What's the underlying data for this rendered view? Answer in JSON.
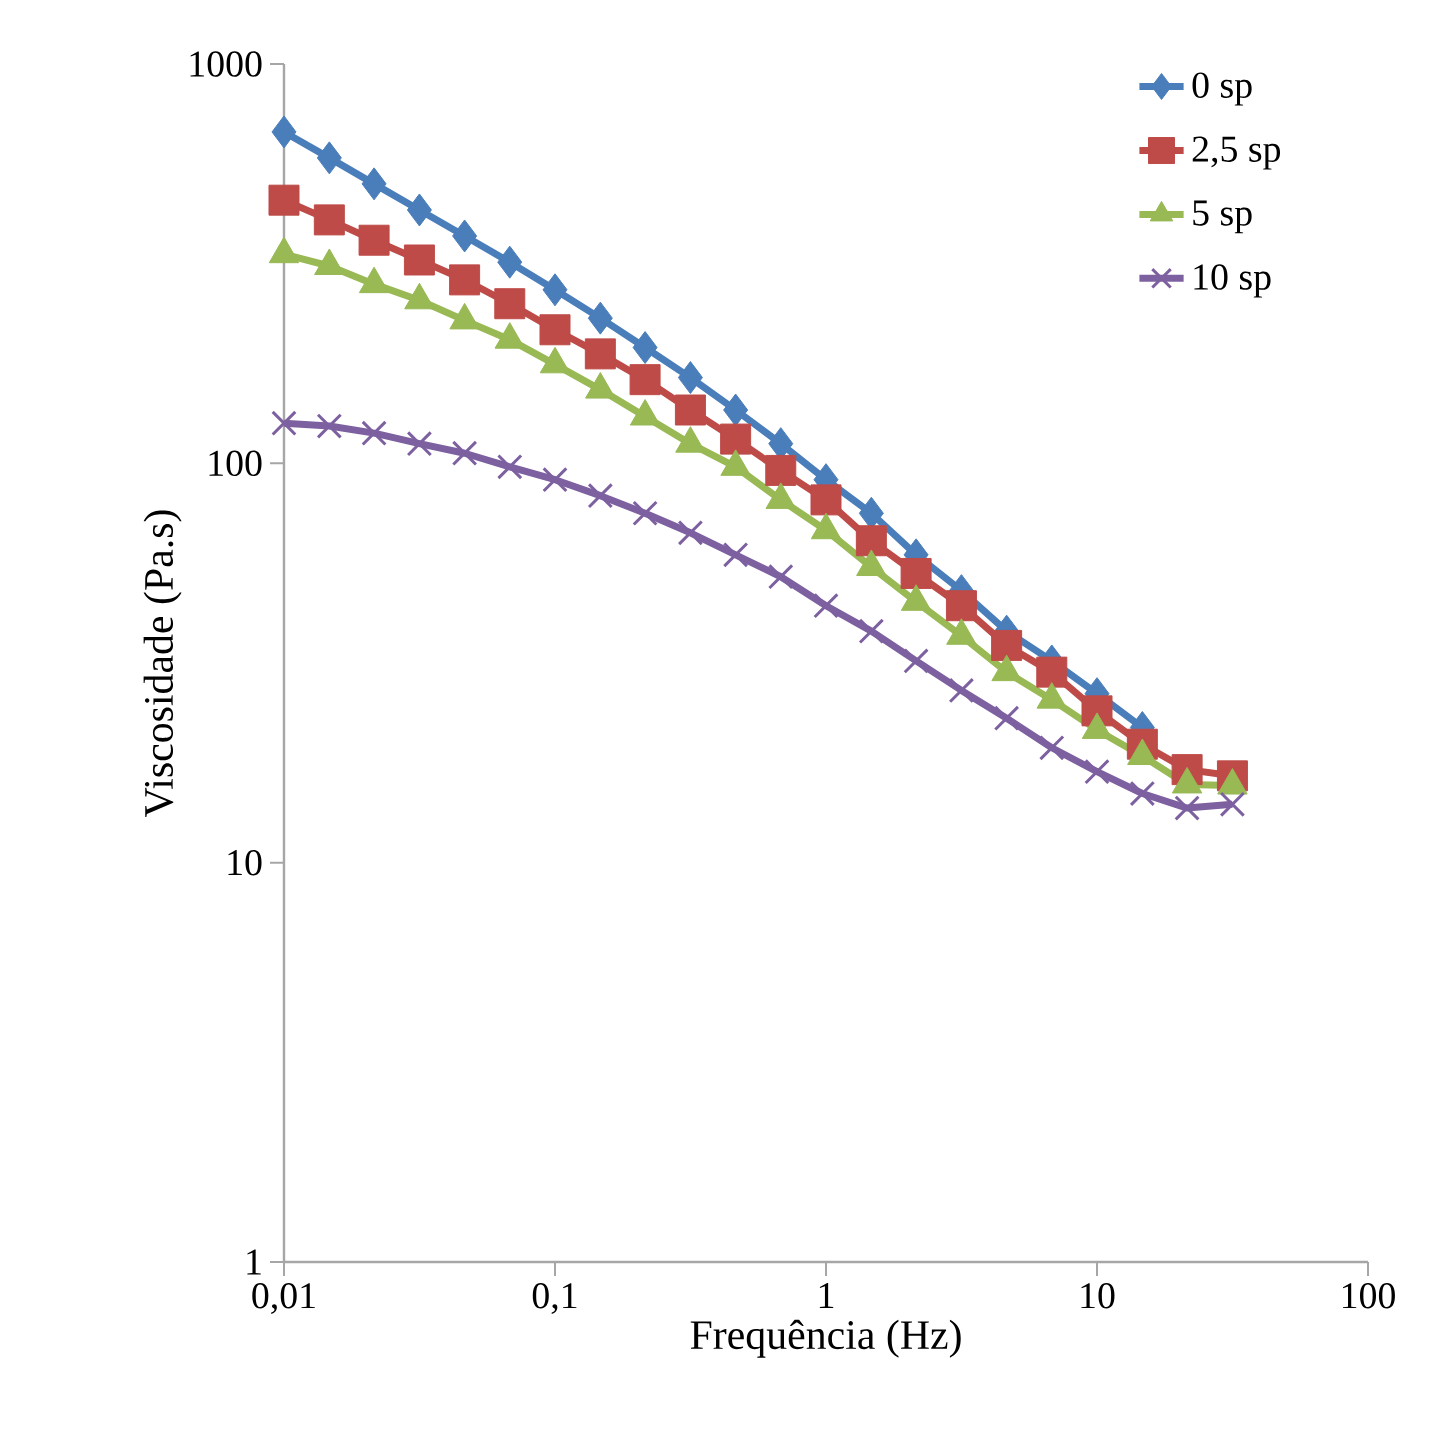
{
  "chart_data": {
    "type": "line",
    "xlabel": "Frequência (Hz)",
    "ylabel": "Viscosidade (Pa.s)",
    "log": "xy",
    "grid": false,
    "legend": "top right",
    "line_style": "solid",
    "xlim": [
      0.01,
      100
    ],
    "xticks": [
      {
        "value": 0.01,
        "label": "0,01"
      },
      {
        "value": 0.1,
        "label": "0,1"
      },
      1,
      10,
      100
    ],
    "ylim": [
      1,
      1000
    ],
    "yticks": [
      1,
      10,
      100,
      1000
    ],
    "x": [
      0.01,
      0.0147,
      0.0215,
      0.0316,
      0.0464,
      0.0681,
      0.1,
      0.147,
      0.215,
      0.316,
      0.464,
      0.681,
      1,
      1.47,
      2.15,
      3.16,
      4.64,
      6.81,
      10,
      14.7,
      21.5,
      31.6
    ],
    "series": [
      {
        "name": "0 sp",
        "color": "#4a7ebb",
        "marker": "diamond",
        "values": [
          676,
          582,
          501,
          431,
          371,
          319,
          272,
          231,
          195,
          164,
          136,
          112,
          91,
          75,
          59,
          48,
          38,
          32,
          26.5,
          21.8,
          null,
          null
        ]
      },
      {
        "name": "2,5 sp",
        "color": "#be4b48",
        "marker": "square",
        "values": [
          456,
          407,
          362,
          323,
          288,
          251,
          216,
          188,
          162,
          136,
          115,
          96,
          81,
          64,
          53,
          44,
          35,
          30,
          24,
          19.8,
          17.1,
          16.5
        ]
      },
      {
        "name": "5 sp",
        "color": "#98b954",
        "marker": "triangle",
        "values": [
          334,
          312,
          281,
          256,
          228,
          204,
          177,
          153,
          131,
          112,
          98,
          81,
          68,
          55,
          45,
          37,
          30,
          25.6,
          21.5,
          18.5,
          15.7,
          15.6
        ]
      },
      {
        "name": "10 sp",
        "color": "#7d60a0",
        "marker": "cross",
        "values": [
          126,
          124,
          119,
          112,
          106,
          98,
          91,
          83,
          75,
          67,
          59,
          52,
          44,
          38,
          32,
          27,
          23,
          19.4,
          16.9,
          14.9,
          13.7,
          14.0
        ]
      }
    ]
  }
}
